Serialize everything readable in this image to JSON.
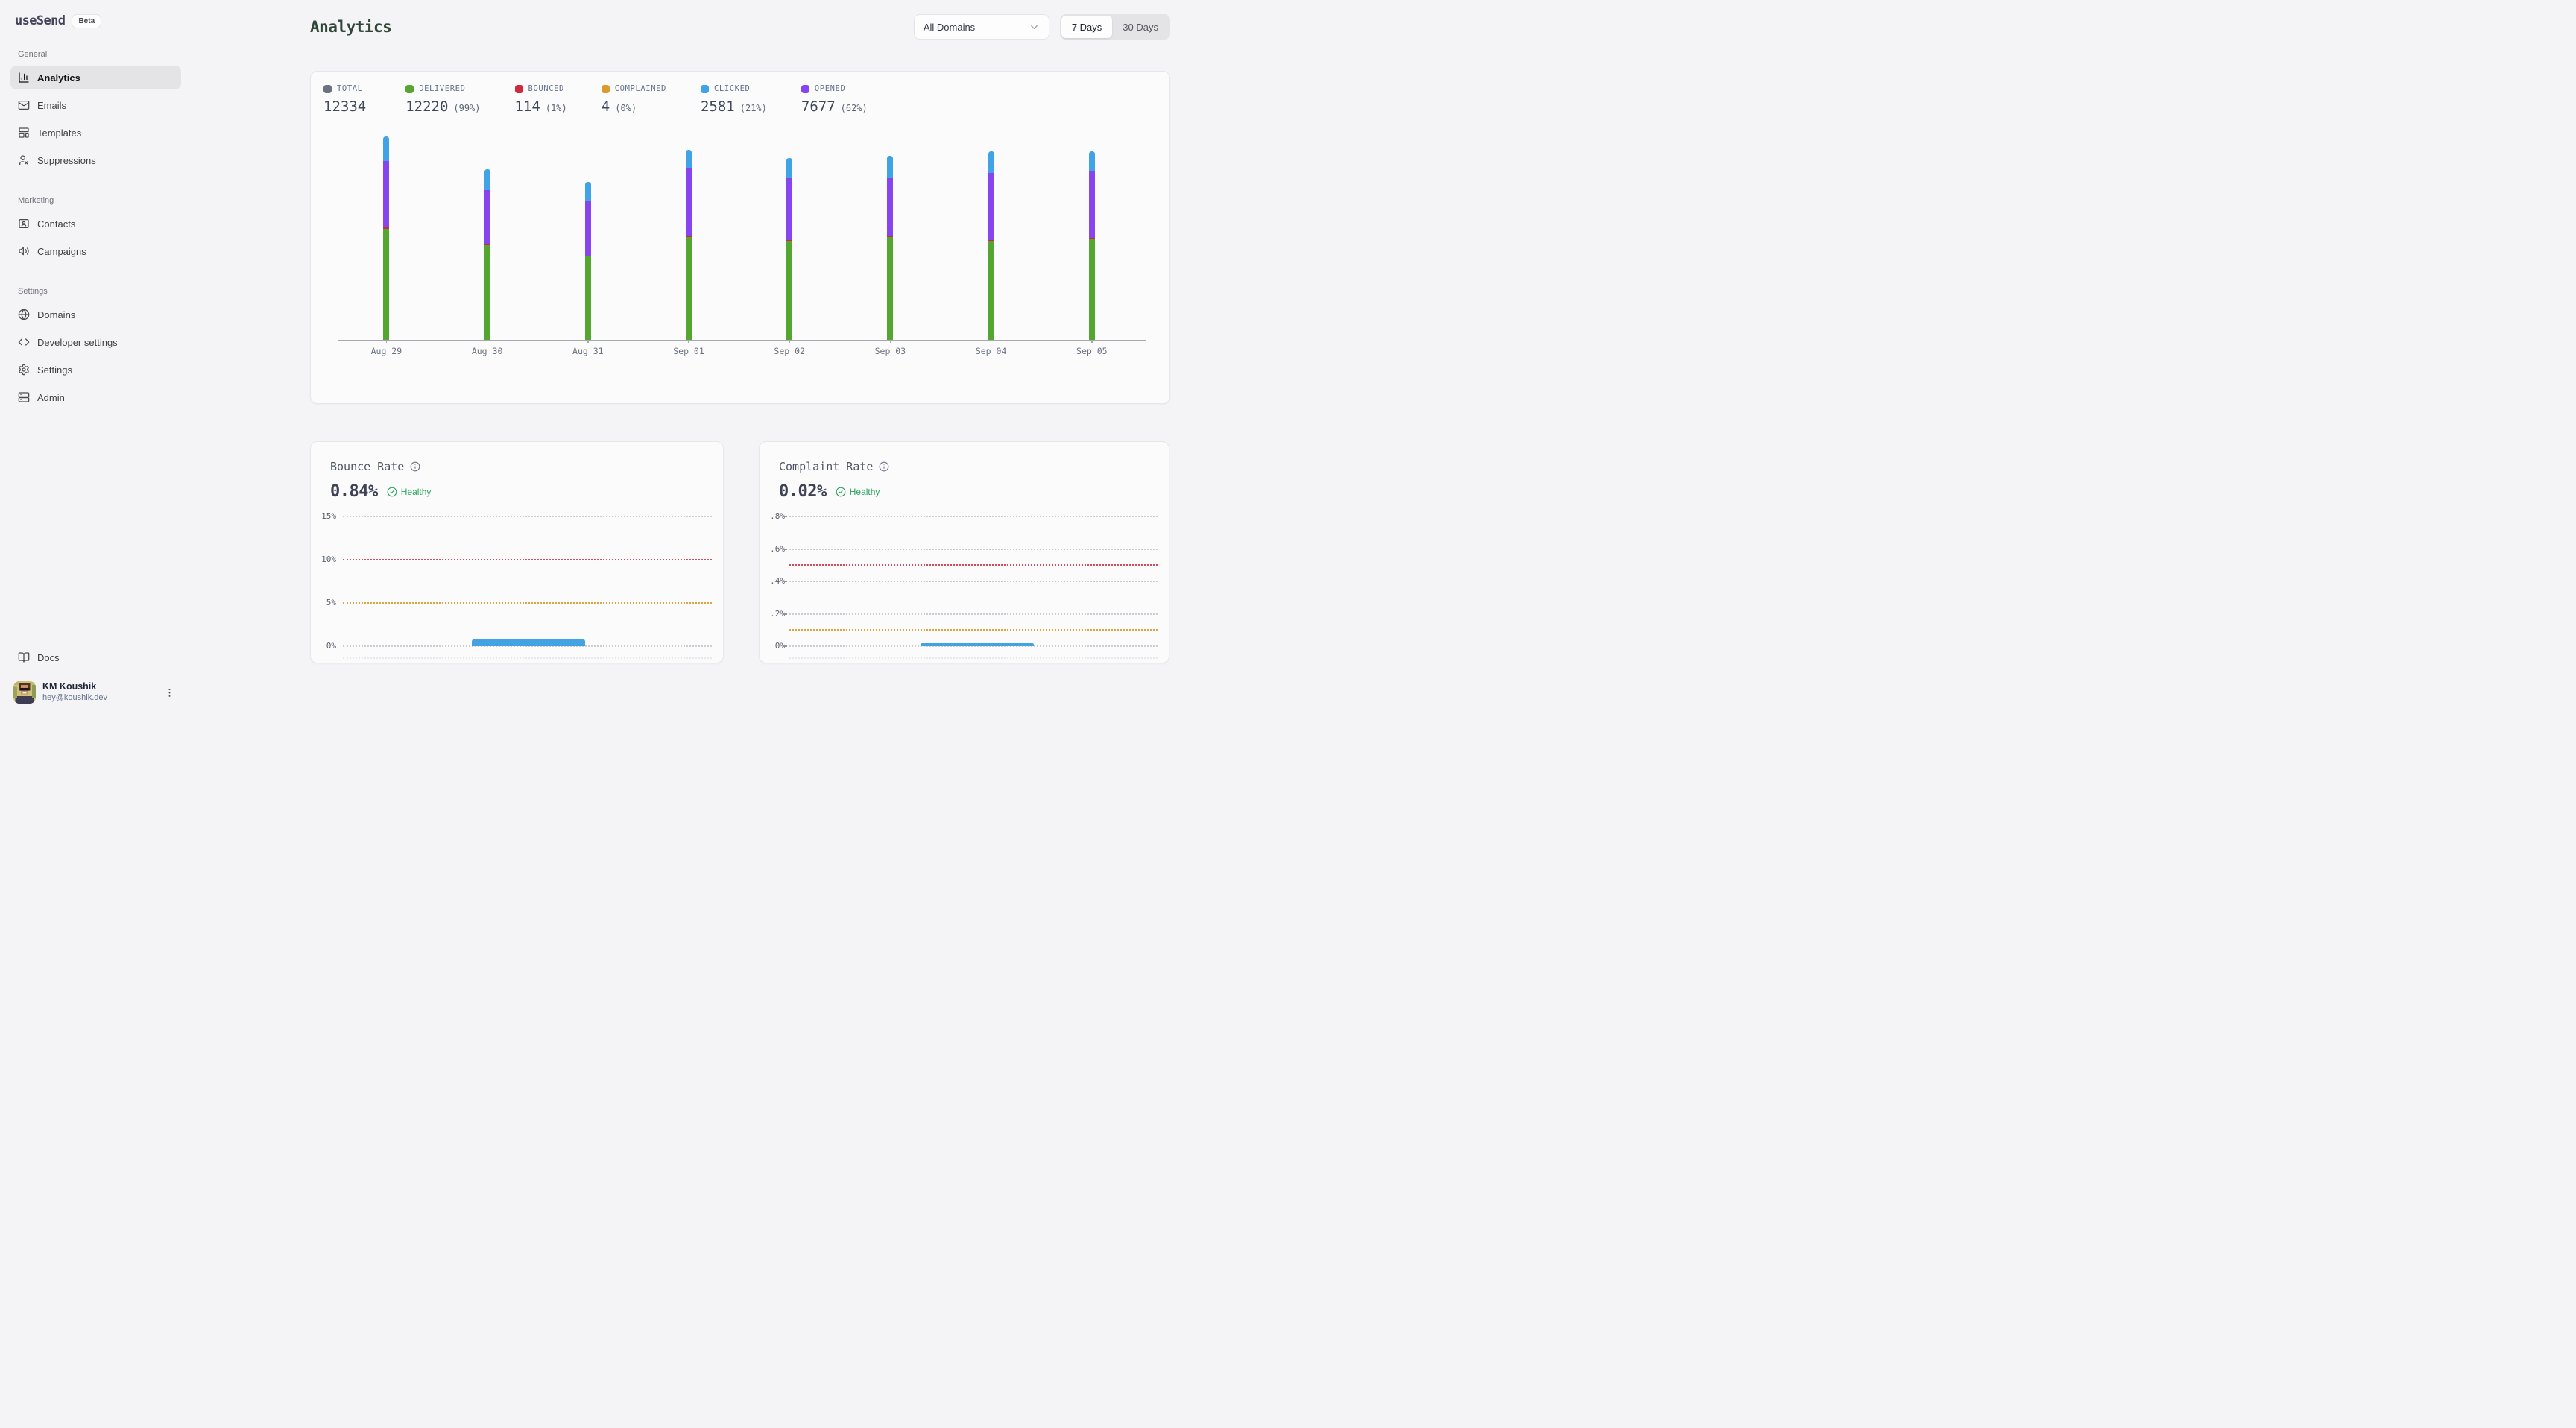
{
  "brand": {
    "name": "useSend",
    "badge": "Beta"
  },
  "sidebar": {
    "sections": [
      {
        "label": "General",
        "items": [
          {
            "label": "Analytics",
            "icon": "bar-chart-icon",
            "active": true
          },
          {
            "label": "Emails",
            "icon": "mail-icon",
            "active": false
          },
          {
            "label": "Templates",
            "icon": "template-icon",
            "active": false
          },
          {
            "label": "Suppressions",
            "icon": "user-x-icon",
            "active": false
          }
        ]
      },
      {
        "label": "Marketing",
        "items": [
          {
            "label": "Contacts",
            "icon": "contact-card-icon",
            "active": false
          },
          {
            "label": "Campaigns",
            "icon": "megaphone-icon",
            "active": false
          }
        ]
      },
      {
        "label": "Settings",
        "items": [
          {
            "label": "Domains",
            "icon": "globe-icon",
            "active": false
          },
          {
            "label": "Developer settings",
            "icon": "code-icon",
            "active": false
          },
          {
            "label": "Settings",
            "icon": "gear-icon",
            "active": false
          },
          {
            "label": "Admin",
            "icon": "server-icon",
            "active": false
          }
        ]
      }
    ],
    "docs_label": "Docs",
    "user": {
      "name": "KM Koushik",
      "email": "hey@koushik.dev"
    }
  },
  "header": {
    "title": "Analytics",
    "domain_filter_value": "All Domains",
    "range_toggle": {
      "options": [
        "7 Days",
        "30 Days"
      ],
      "active": "7 Days"
    }
  },
  "stats": [
    {
      "label": "TOTAL",
      "value": "12334",
      "percent": "",
      "color": "#6b7280"
    },
    {
      "label": "DELIVERED",
      "value": "12220",
      "percent": "(99%)",
      "color": "#55a630"
    },
    {
      "label": "BOUNCED",
      "value": "114",
      "percent": "(1%)",
      "color": "#d02a3a"
    },
    {
      "label": "COMPLAINED",
      "value": "4",
      "percent": "(0%)",
      "color": "#d99a2e"
    },
    {
      "label": "CLICKED",
      "value": "2581",
      "percent": "(21%)",
      "color": "#3fa3e5"
    },
    {
      "label": "OPENED",
      "value": "7677",
      "percent": "(62%)",
      "color": "#8745ef"
    }
  ],
  "chart_data": [
    {
      "type": "bar",
      "stacked": true,
      "title": "Daily email volume",
      "categories": [
        "Aug 29",
        "Aug 30",
        "Aug 31",
        "Sep 01",
        "Sep 02",
        "Sep 03",
        "Sep 04",
        "Sep 05"
      ],
      "series": [
        {
          "name": "Delivered",
          "color": "#55a630",
          "values": [
            1716,
            1458,
            1281,
            1583,
            1523,
            1583,
            1528,
            1547
          ]
        },
        {
          "name": "Bounced",
          "color": "#d02a3a",
          "values": [
            15,
            15,
            14,
            14,
            14,
            14,
            14,
            14
          ]
        },
        {
          "name": "Opened",
          "color": "#8745ef",
          "values": [
            1030,
            840,
            840,
            1050,
            950,
            890,
            1030,
            1047
          ]
        },
        {
          "name": "Clicked",
          "color": "#3fa3e5",
          "values": [
            375,
            320,
            300,
            280,
            320,
            355,
            330,
            301
          ]
        }
      ],
      "stack_order_bottom_to_top": [
        "Delivered",
        "Bounced",
        "Opened",
        "Clicked"
      ],
      "legend_position": "top",
      "grid": false,
      "y_axis": false,
      "x_axis": true
    },
    {
      "type": "bar",
      "title": "Bounce Rate",
      "value_display": "0.84%",
      "value_percent": 0.84,
      "status": "Healthy",
      "y_max": 15,
      "tick_marks": false,
      "bar_color": "#43a2e2",
      "thresholds": {
        "danger": 10,
        "warning": 5
      },
      "gridlines": [
        {
          "label": "15%",
          "value": 15,
          "color": "gray"
        },
        {
          "label": "10%",
          "value": 10,
          "color": "red"
        },
        {
          "label": "5%",
          "value": 5,
          "color": "amber"
        },
        {
          "label": "0%",
          "value": 0,
          "color": "gray"
        }
      ]
    },
    {
      "type": "bar",
      "title": "Complaint Rate",
      "value_display": "0.02%",
      "value_percent": 0.02,
      "status": "Healthy",
      "y_max": 0.8,
      "tick_marks": true,
      "bar_color": "#43a2e2",
      "thresholds": {
        "danger": 0.5,
        "warning": 0.1
      },
      "gridlines": [
        {
          "label": ".8%",
          "value": 0.8,
          "color": "gray"
        },
        {
          "label": ".6%",
          "value": 0.6,
          "color": "gray"
        },
        {
          "label": "",
          "value": 0.5,
          "color": "red"
        },
        {
          "label": ".4%",
          "value": 0.4,
          "color": "gray"
        },
        {
          "label": ".2%",
          "value": 0.2,
          "color": "gray"
        },
        {
          "label": "",
          "value": 0.1,
          "color": "amber"
        },
        {
          "label": "0%",
          "value": 0,
          "color": "gray"
        }
      ]
    }
  ]
}
